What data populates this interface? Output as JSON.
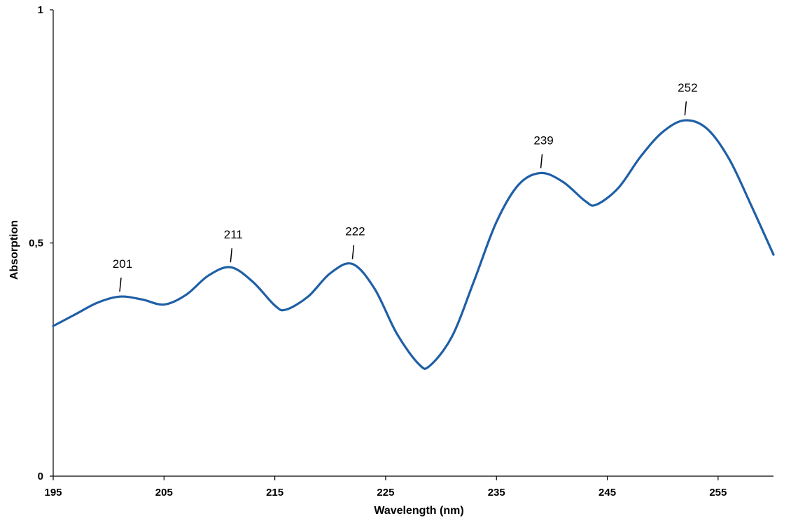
{
  "chart_data": {
    "type": "line",
    "title": "",
    "xlabel": "Wavelength (nm)",
    "ylabel": "Absorption",
    "xlim": [
      195,
      260
    ],
    "ylim": [
      0,
      1
    ],
    "x_ticks": [
      195,
      205,
      215,
      225,
      235,
      245,
      255
    ],
    "x_tick_labels": [
      "195",
      "205",
      "215",
      "225",
      "235",
      "245",
      "255"
    ],
    "y_ticks": [
      0,
      0.5,
      1
    ],
    "y_tick_labels": [
      "0",
      "0,5",
      "1"
    ],
    "grid": false,
    "legend": "none",
    "series": [
      {
        "color": "#1f5fa6",
        "x": [
          195,
          197,
          199,
          201,
          203,
          205,
          207,
          209,
          211,
          213,
          215,
          216,
          218,
          220,
          222,
          224,
          226,
          228,
          229,
          231,
          233,
          235,
          237,
          239,
          241,
          243,
          244,
          246,
          248,
          250,
          252,
          254,
          256,
          258,
          260
        ],
        "y": [
          0.322,
          0.347,
          0.372,
          0.385,
          0.379,
          0.368,
          0.389,
          0.43,
          0.448,
          0.417,
          0.366,
          0.357,
          0.385,
          0.435,
          0.455,
          0.402,
          0.306,
          0.24,
          0.237,
          0.3,
          0.42,
          0.545,
          0.625,
          0.65,
          0.631,
          0.59,
          0.582,
          0.618,
          0.685,
          0.738,
          0.763,
          0.745,
          0.68,
          0.58,
          0.475
        ]
      }
    ],
    "annotations": [
      {
        "label": "201",
        "x": 201,
        "y": 0.385
      },
      {
        "label": "211",
        "x": 211,
        "y": 0.448
      },
      {
        "label": "222",
        "x": 222,
        "y": 0.455
      },
      {
        "label": "239",
        "x": 239,
        "y": 0.65
      },
      {
        "label": "252",
        "x": 252,
        "y": 0.763
      }
    ]
  }
}
